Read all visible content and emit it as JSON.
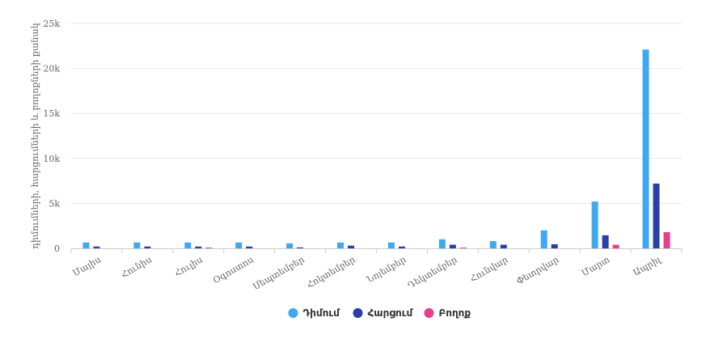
{
  "chart_data": {
    "type": "bar",
    "categories": [
      "Մայիս",
      "Հունիս",
      "Հուլիս",
      "Օգոստոս",
      "Սեպտեմբեր",
      "Հոկտեմբեր",
      "Նոյեմբեր",
      "Դեկտեմբեր",
      "Հունվար",
      "Փետրվար",
      "Մարտ",
      "Ապրիլ"
    ],
    "series": [
      {
        "name": "Դիմում",
        "color": "#3fa9ef",
        "values": [
          650,
          650,
          650,
          650,
          550,
          650,
          650,
          1000,
          800,
          2000,
          5200,
          22100
        ]
      },
      {
        "name": "Հարցում",
        "color": "#2a3faa",
        "values": [
          200,
          200,
          200,
          200,
          100,
          300,
          200,
          400,
          400,
          450,
          1450,
          7200
        ]
      },
      {
        "name": "Բողոք",
        "color": "#e83e8c",
        "values": [
          0,
          0,
          80,
          0,
          0,
          0,
          0,
          80,
          0,
          0,
          400,
          1800
        ]
      }
    ],
    "ylabel": "դիմումների, հարցումների և բողոքների քանակ",
    "xlabel": "",
    "ylim": [
      0,
      25000
    ],
    "yticks": [
      0,
      5000,
      10000,
      15000,
      20000,
      25000
    ],
    "ytick_labels": [
      "0",
      "5k",
      "10k",
      "15k",
      "20k",
      "25k"
    ],
    "grid": true,
    "legend_position": "bottom-center"
  }
}
